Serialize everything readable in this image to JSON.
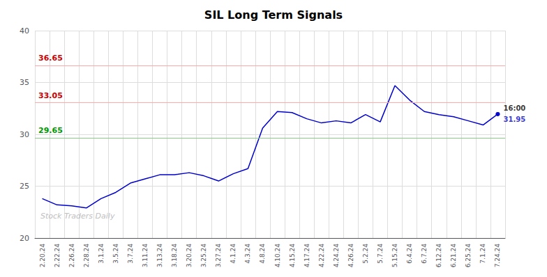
{
  "chart_data": {
    "type": "line",
    "title": "SIL Long Term Signals",
    "color": "#0000cc",
    "categories": [
      "2.20.24",
      "2.22.24",
      "2.26.24",
      "2.28.24",
      "3.1.24",
      "3.5.24",
      "3.7.24",
      "3.11.24",
      "3.13.24",
      "3.18.24",
      "3.20.24",
      "3.25.24",
      "3.27.24",
      "4.1.24",
      "4.3.24",
      "4.8.24",
      "4.10.24",
      "4.15.24",
      "4.17.24",
      "4.22.24",
      "4.24.24",
      "4.26.24",
      "5.2.24",
      "5.7.24",
      "5.15.24",
      "6.4.24",
      "6.7.24",
      "6.12.24",
      "6.21.24",
      "6.25.24",
      "7.1.24",
      "7.24.24"
    ],
    "values": [
      23.8,
      23.2,
      23.1,
      22.9,
      23.8,
      24.4,
      25.3,
      25.7,
      26.1,
      26.1,
      26.3,
      26.0,
      25.5,
      26.2,
      26.7,
      30.6,
      32.2,
      32.1,
      31.5,
      31.1,
      31.3,
      31.1,
      31.9,
      31.2,
      34.7,
      33.3,
      32.2,
      31.9,
      31.7,
      31.3,
      30.9,
      31.95
    ],
    "ylim": [
      20,
      40
    ],
    "yticks": [
      20,
      25,
      30,
      35,
      40
    ],
    "grid": true,
    "reference_lines": [
      {
        "value": 36.65,
        "label": "36.65",
        "color": "#ffaaaa",
        "label_color": "#cc0000"
      },
      {
        "value": 33.05,
        "label": "33.05",
        "color": "#ffaaaa",
        "label_color": "#cc0000"
      },
      {
        "value": 29.65,
        "label": "29.65",
        "color": "#88cc88",
        "label_color": "#009900"
      }
    ],
    "annotations": [
      {
        "category": "7.24.24",
        "value": 31.95,
        "text": "16:00",
        "color": "#000000"
      },
      {
        "category": "7.24.24",
        "value": 31.95,
        "text": "31.95",
        "color": "#0000cc"
      }
    ],
    "watermark": "Stock Traders Daily"
  }
}
